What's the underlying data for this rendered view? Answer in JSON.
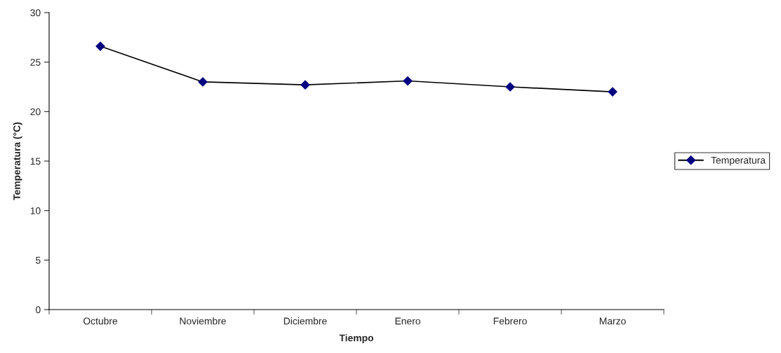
{
  "chart_data": {
    "type": "line",
    "xlabel": "Tiempo",
    "ylabel": "Temperatura (°C)",
    "categories": [
      "Octubre",
      "Noviembre",
      "Diciembre",
      "Enero",
      "Febrero",
      "Marzo"
    ],
    "series": [
      {
        "name": "Temperatura",
        "color": "#000080",
        "values": [
          26.6,
          23.0,
          22.7,
          23.1,
          22.5,
          22.0
        ]
      }
    ],
    "ylim": [
      0,
      30
    ],
    "yticks": [
      0,
      5,
      10,
      15,
      20,
      25,
      30
    ],
    "grid": false,
    "legend": "right",
    "marker": "diamond",
    "line_style": "solid"
  }
}
